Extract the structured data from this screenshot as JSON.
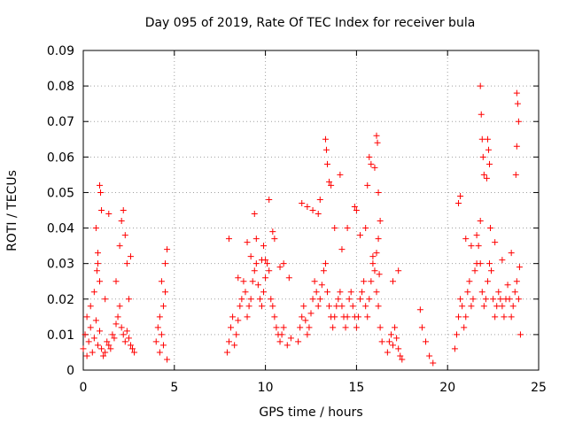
{
  "chart_data": {
    "type": "scatter",
    "title": "Day 095 of 2019, Rate Of TEC Index for receiver bula",
    "xlabel": "GPS time / hours",
    "ylabel": "ROTI / TECUs",
    "xlim": [
      0,
      25
    ],
    "ylim": [
      0,
      0.09
    ],
    "xticks": [
      "0",
      "5",
      "10",
      "15",
      "20",
      "25"
    ],
    "yticks": [
      "0",
      "0.01",
      "0.02",
      "0.03",
      "0.04",
      "0.05",
      "0.06",
      "0.07",
      "0.08",
      "0.09"
    ],
    "grid": true,
    "marker": "+",
    "color": "#ff0000",
    "x": [
      0.0,
      0.1,
      0.2,
      0.3,
      0.4,
      0.5,
      0.6,
      0.7,
      0.8,
      0.9,
      1.0,
      1.1,
      1.2,
      1.3,
      1.4,
      1.5,
      1.6,
      1.7,
      1.8,
      1.9,
      2.0,
      2.1,
      2.2,
      2.3,
      2.4,
      2.5,
      2.6,
      2.7,
      2.8,
      0.7,
      0.8,
      0.9,
      0.95,
      1.0,
      0.8,
      0.75,
      0.9,
      1.4,
      2.1,
      2.2,
      2.3,
      2.0,
      2.4,
      2.5,
      0.2,
      0.4,
      0.6,
      1.2,
      1.8,
      2.6,
      4.0,
      4.1,
      4.2,
      4.3,
      4.4,
      4.5,
      4.6,
      4.3,
      4.5,
      4.6,
      4.2,
      4.4,
      7.9,
      8.0,
      8.1,
      8.2,
      8.3,
      8.4,
      8.5,
      8.6,
      8.7,
      8.8,
      8.9,
      9.0,
      9.1,
      9.2,
      9.3,
      9.4,
      9.5,
      9.6,
      9.7,
      9.8,
      9.9,
      10.0,
      10.1,
      10.2,
      10.3,
      10.4,
      10.5,
      10.6,
      10.7,
      10.8,
      10.9,
      11.0,
      11.2,
      11.4,
      8.0,
      9.0,
      9.2,
      9.5,
      9.8,
      10.0,
      10.2,
      10.5,
      10.8,
      11.0,
      8.5,
      9.4,
      9.9,
      10.4,
      11.3,
      11.8,
      11.9,
      12.0,
      12.1,
      12.2,
      12.3,
      12.4,
      12.5,
      12.6,
      12.7,
      12.8,
      12.9,
      13.0,
      13.1,
      13.2,
      13.3,
      13.4,
      13.5,
      13.6,
      13.7,
      13.8,
      13.9,
      14.0,
      14.1,
      14.2,
      14.3,
      14.4,
      14.5,
      14.6,
      14.7,
      14.8,
      14.9,
      15.0,
      15.1,
      15.2,
      15.3,
      15.4,
      15.5,
      15.6,
      15.7,
      15.8,
      15.9,
      16.0,
      16.1,
      16.2,
      16.3,
      16.4,
      13.3,
      13.35,
      13.4,
      13.5,
      13.6,
      12.6,
      12.9,
      13.8,
      14.1,
      14.5,
      14.9,
      15.0,
      15.2,
      15.5,
      15.6,
      15.7,
      15.8,
      16.0,
      16.1,
      16.15,
      16.2,
      16.3,
      16.2,
      16.1,
      12.0,
      12.3,
      13.0,
      14.2,
      15.9,
      16.25,
      16.7,
      16.8,
      16.9,
      17.0,
      17.1,
      17.2,
      17.3,
      17.4,
      17.5,
      17.0,
      17.3,
      18.5,
      18.6,
      18.8,
      19.0,
      19.2,
      20.4,
      20.5,
      20.6,
      20.7,
      20.8,
      20.9,
      21.0,
      21.1,
      21.2,
      21.3,
      21.4,
      21.5,
      21.6,
      21.7,
      21.8,
      21.9,
      22.0,
      22.1,
      22.2,
      22.3,
      22.4,
      22.5,
      22.6,
      22.7,
      22.8,
      22.9,
      23.0,
      23.1,
      23.2,
      23.3,
      23.4,
      23.5,
      23.6,
      23.7,
      23.8,
      23.9,
      24.0,
      21.8,
      21.85,
      21.9,
      21.95,
      22.0,
      21.8,
      22.2,
      22.25,
      22.3,
      22.15,
      22.35,
      23.8,
      23.85,
      23.9,
      23.8,
      23.75,
      20.7,
      20.6,
      21.0,
      21.3,
      21.6,
      22.6,
      23.0,
      23.5,
      23.95
    ],
    "y": [
      0.006,
      0.01,
      0.004,
      0.008,
      0.012,
      0.005,
      0.009,
      0.014,
      0.007,
      0.011,
      0.006,
      0.004,
      0.005,
      0.008,
      0.007,
      0.006,
      0.01,
      0.009,
      0.013,
      0.015,
      0.018,
      0.012,
      0.01,
      0.008,
      0.011,
      0.009,
      0.007,
      0.006,
      0.005,
      0.04,
      0.033,
      0.052,
      0.05,
      0.045,
      0.03,
      0.028,
      0.025,
      0.044,
      0.042,
      0.045,
      0.038,
      0.035,
      0.03,
      0.02,
      0.015,
      0.018,
      0.022,
      0.02,
      0.025,
      0.032,
      0.008,
      0.012,
      0.015,
      0.01,
      0.018,
      0.022,
      0.034,
      0.025,
      0.03,
      0.003,
      0.005,
      0.007,
      0.005,
      0.008,
      0.012,
      0.015,
      0.007,
      0.01,
      0.014,
      0.018,
      0.02,
      0.025,
      0.022,
      0.015,
      0.018,
      0.02,
      0.025,
      0.028,
      0.03,
      0.024,
      0.02,
      0.018,
      0.022,
      0.026,
      0.03,
      0.028,
      0.02,
      0.018,
      0.015,
      0.012,
      0.01,
      0.008,
      0.01,
      0.012,
      0.007,
      0.009,
      0.037,
      0.036,
      0.032,
      0.037,
      0.031,
      0.031,
      0.048,
      0.037,
      0.029,
      0.03,
      0.026,
      0.044,
      0.035,
      0.039,
      0.026,
      0.008,
      0.012,
      0.015,
      0.018,
      0.014,
      0.01,
      0.012,
      0.016,
      0.02,
      0.025,
      0.022,
      0.018,
      0.02,
      0.024,
      0.028,
      0.03,
      0.022,
      0.018,
      0.015,
      0.012,
      0.015,
      0.018,
      0.02,
      0.022,
      0.018,
      0.015,
      0.012,
      0.015,
      0.02,
      0.022,
      0.018,
      0.015,
      0.012,
      0.015,
      0.02,
      0.022,
      0.025,
      0.018,
      0.015,
      0.02,
      0.025,
      0.03,
      0.028,
      0.022,
      0.018,
      0.012,
      0.008,
      0.065,
      0.062,
      0.058,
      0.053,
      0.052,
      0.045,
      0.044,
      0.04,
      0.055,
      0.04,
      0.046,
      0.045,
      0.038,
      0.04,
      0.052,
      0.06,
      0.058,
      0.057,
      0.066,
      0.064,
      0.05,
      0.042,
      0.037,
      0.033,
      0.047,
      0.046,
      0.048,
      0.034,
      0.032,
      0.027,
      0.005,
      0.008,
      0.01,
      0.007,
      0.012,
      0.009,
      0.006,
      0.004,
      0.003,
      0.025,
      0.028,
      0.017,
      0.012,
      0.008,
      0.004,
      0.002,
      0.006,
      0.01,
      0.015,
      0.02,
      0.018,
      0.012,
      0.015,
      0.022,
      0.025,
      0.018,
      0.02,
      0.028,
      0.03,
      0.035,
      0.03,
      0.022,
      0.018,
      0.02,
      0.025,
      0.03,
      0.028,
      0.02,
      0.015,
      0.018,
      0.022,
      0.02,
      0.018,
      0.015,
      0.02,
      0.024,
      0.02,
      0.015,
      0.018,
      0.022,
      0.025,
      0.02,
      0.01,
      0.08,
      0.072,
      0.065,
      0.06,
      0.055,
      0.042,
      0.065,
      0.062,
      0.058,
      0.054,
      0.04,
      0.078,
      0.075,
      0.07,
      0.063,
      0.055,
      0.049,
      0.047,
      0.037,
      0.035,
      0.038,
      0.036,
      0.031,
      0.033,
      0.029
    ]
  }
}
